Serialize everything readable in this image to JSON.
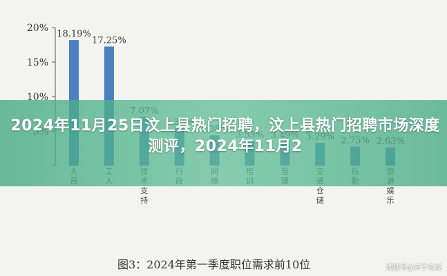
{
  "chart_data": {
    "type": "bar",
    "categories": [
      "人员",
      "工人",
      "技术支持",
      "行政",
      "网络",
      "培训",
      "管理",
      "交通仓储",
      "后勤",
      "旅游娱乐"
    ],
    "values": [
      18.19,
      17.25,
      7.07,
      5.38,
      4.38,
      3.53,
      3.49,
      3.29,
      2.75,
      2.63
    ],
    "value_labels": [
      "18.19%",
      "17.25%",
      "7.07%",
      "5.38%",
      "4.38%",
      "3.53%",
      "3.49%",
      "3.29%",
      "2.75%",
      "2.63%"
    ],
    "yticks": [
      "0",
      "5%",
      "10%",
      "15%",
      "20%"
    ],
    "ylim": [
      0,
      20
    ],
    "bar_color": "#4a7fc1",
    "title": "",
    "xlabel": "",
    "ylabel": "",
    "grid": false
  },
  "caption": "图3：2024年第一季度职位需求前10位",
  "banner": {
    "title": "2024年11月25日汶上县热门招聘，汶上县热门招聘市场深度测评，2024年11月2"
  },
  "watermark": "搜狐号@济宁名城",
  "colors": {
    "banner": "#4fb08a",
    "bar": "#4a7fc1"
  }
}
